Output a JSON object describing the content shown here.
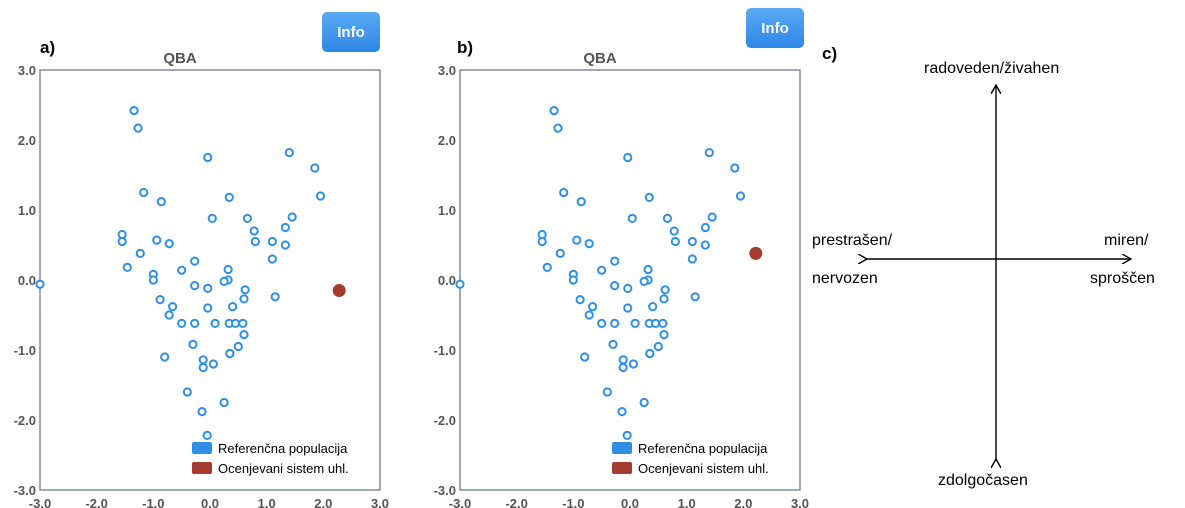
{
  "panels": [
    {
      "letter": "a)",
      "info_label": "Info"
    },
    {
      "letter": "b)",
      "info_label": "Info"
    },
    {
      "letter": "c)"
    }
  ],
  "chart_data": [
    {
      "type": "scatter",
      "title": "QBA",
      "xlim": [
        -3.0,
        3.0
      ],
      "ylim": [
        -3.0,
        3.0
      ],
      "x_ticks": [
        "-3.0",
        "-2.0",
        "-1.0",
        "0.0",
        "1.0",
        "2.0",
        "3.0"
      ],
      "y_ticks": [
        "3.0",
        "2.0",
        "1.0",
        "0.0",
        "-1.0",
        "-2.0",
        "-3.0"
      ],
      "grid": false,
      "legend_position": "bottom-right",
      "series": [
        {
          "name": "Referenčna populacija",
          "color": "#2f8fe6",
          "marker": "open-circle",
          "points": [
            [
              -3.0,
              -0.06
            ],
            [
              -1.34,
              2.42
            ],
            [
              -1.27,
              2.17
            ],
            [
              -1.17,
              1.25
            ],
            [
              -1.55,
              0.65
            ],
            [
              -1.55,
              0.55
            ],
            [
              -1.23,
              0.38
            ],
            [
              -1.46,
              0.18
            ],
            [
              -0.86,
              1.12
            ],
            [
              -0.94,
              0.57
            ],
            [
              -0.72,
              0.52
            ],
            [
              -1.0,
              0.08
            ],
            [
              -1.0,
              0.0
            ],
            [
              -0.88,
              -0.28
            ],
            [
              -0.66,
              -0.38
            ],
            [
              -0.72,
              -0.5
            ],
            [
              -0.5,
              -0.62
            ],
            [
              -0.5,
              0.14
            ],
            [
              -0.27,
              0.27
            ],
            [
              -0.27,
              -0.08
            ],
            [
              -0.27,
              -0.62
            ],
            [
              -0.04,
              1.75
            ],
            [
              0.04,
              0.88
            ],
            [
              -0.04,
              -0.12
            ],
            [
              -0.04,
              -0.4
            ],
            [
              0.09,
              -0.62
            ],
            [
              -0.3,
              -0.92
            ],
            [
              -0.8,
              -1.1
            ],
            [
              -0.12,
              -1.14
            ],
            [
              -0.12,
              -1.25
            ],
            [
              0.06,
              -1.2
            ],
            [
              -0.4,
              -1.6
            ],
            [
              -0.14,
              -1.88
            ],
            [
              -0.05,
              -2.22
            ],
            [
              0.34,
              1.18
            ],
            [
              0.32,
              0.15
            ],
            [
              0.32,
              0.0
            ],
            [
              0.25,
              -0.02
            ],
            [
              0.4,
              -0.38
            ],
            [
              0.34,
              -0.62
            ],
            [
              0.45,
              -0.62
            ],
            [
              0.58,
              -0.62
            ],
            [
              0.6,
              -0.27
            ],
            [
              0.62,
              -0.14
            ],
            [
              0.6,
              -0.78
            ],
            [
              0.5,
              -0.95
            ],
            [
              0.35,
              -1.05
            ],
            [
              0.25,
              -1.75
            ],
            [
              0.35,
              -1.05
            ],
            [
              0.66,
              0.88
            ],
            [
              0.78,
              0.7
            ],
            [
              0.8,
              0.55
            ],
            [
              1.1,
              0.55
            ],
            [
              1.33,
              0.5
            ],
            [
              1.33,
              0.75
            ],
            [
              1.45,
              0.9
            ],
            [
              1.4,
              1.82
            ],
            [
              1.1,
              0.3
            ],
            [
              1.15,
              -0.24
            ],
            [
              1.85,
              1.6
            ],
            [
              1.95,
              1.2
            ]
          ]
        },
        {
          "name": "Ocenjevani sistem uhl.",
          "color": "#a33b2e",
          "marker": "filled-circle",
          "points": [
            [
              2.28,
              -0.15
            ]
          ]
        }
      ]
    },
    {
      "type": "scatter",
      "title": "QBA",
      "xlim": [
        -3.0,
        3.0
      ],
      "ylim": [
        -3.0,
        3.0
      ],
      "x_ticks": [
        "-3.0",
        "-2.0",
        "-1.0",
        "0.0",
        "1.0",
        "2.0",
        "3.0"
      ],
      "y_ticks": [
        "3.0",
        "2.0",
        "1.0",
        "0.0",
        "-1.0",
        "-2.0",
        "-3.0"
      ],
      "grid": false,
      "legend_position": "bottom-right",
      "series": [
        {
          "name": "Referenčna populacija",
          "color": "#2f8fe6",
          "marker": "open-circle",
          "points": [
            [
              -3.0,
              -0.06
            ],
            [
              -1.34,
              2.42
            ],
            [
              -1.27,
              2.17
            ],
            [
              -1.17,
              1.25
            ],
            [
              -1.55,
              0.65
            ],
            [
              -1.55,
              0.55
            ],
            [
              -1.23,
              0.38
            ],
            [
              -1.46,
              0.18
            ],
            [
              -0.86,
              1.12
            ],
            [
              -0.94,
              0.57
            ],
            [
              -0.72,
              0.52
            ],
            [
              -1.0,
              0.08
            ],
            [
              -1.0,
              0.0
            ],
            [
              -0.88,
              -0.28
            ],
            [
              -0.66,
              -0.38
            ],
            [
              -0.72,
              -0.5
            ],
            [
              -0.5,
              -0.62
            ],
            [
              -0.5,
              0.14
            ],
            [
              -0.27,
              0.27
            ],
            [
              -0.27,
              -0.08
            ],
            [
              -0.27,
              -0.62
            ],
            [
              -0.04,
              1.75
            ],
            [
              0.04,
              0.88
            ],
            [
              -0.04,
              -0.12
            ],
            [
              -0.04,
              -0.4
            ],
            [
              0.09,
              -0.62
            ],
            [
              -0.3,
              -0.92
            ],
            [
              -0.8,
              -1.1
            ],
            [
              -0.12,
              -1.14
            ],
            [
              -0.12,
              -1.25
            ],
            [
              0.06,
              -1.2
            ],
            [
              -0.4,
              -1.6
            ],
            [
              -0.14,
              -1.88
            ],
            [
              -0.05,
              -2.22
            ],
            [
              0.34,
              1.18
            ],
            [
              0.32,
              0.15
            ],
            [
              0.32,
              0.0
            ],
            [
              0.25,
              -0.02
            ],
            [
              0.4,
              -0.38
            ],
            [
              0.34,
              -0.62
            ],
            [
              0.45,
              -0.62
            ],
            [
              0.58,
              -0.62
            ],
            [
              0.6,
              -0.27
            ],
            [
              0.62,
              -0.14
            ],
            [
              0.6,
              -0.78
            ],
            [
              0.5,
              -0.95
            ],
            [
              0.35,
              -1.05
            ],
            [
              0.25,
              -1.75
            ],
            [
              0.35,
              -1.05
            ],
            [
              0.66,
              0.88
            ],
            [
              0.78,
              0.7
            ],
            [
              0.8,
              0.55
            ],
            [
              1.1,
              0.55
            ],
            [
              1.33,
              0.5
            ],
            [
              1.33,
              0.75
            ],
            [
              1.45,
              0.9
            ],
            [
              1.4,
              1.82
            ],
            [
              1.1,
              0.3
            ],
            [
              1.15,
              -0.24
            ],
            [
              1.85,
              1.6
            ],
            [
              1.95,
              1.2
            ]
          ]
        },
        {
          "name": "Ocenjevani sistem uhl.",
          "color": "#a33b2e",
          "marker": "filled-circle",
          "points": [
            [
              2.22,
              0.38
            ]
          ]
        }
      ]
    }
  ],
  "axes_diagram": {
    "top": "radoveden/živahen",
    "bottom": "zdolgočasen",
    "left_line1": "prestrašen/",
    "left_line2": "nervozen",
    "right_line1": "miren/",
    "right_line2": "sproščen"
  }
}
